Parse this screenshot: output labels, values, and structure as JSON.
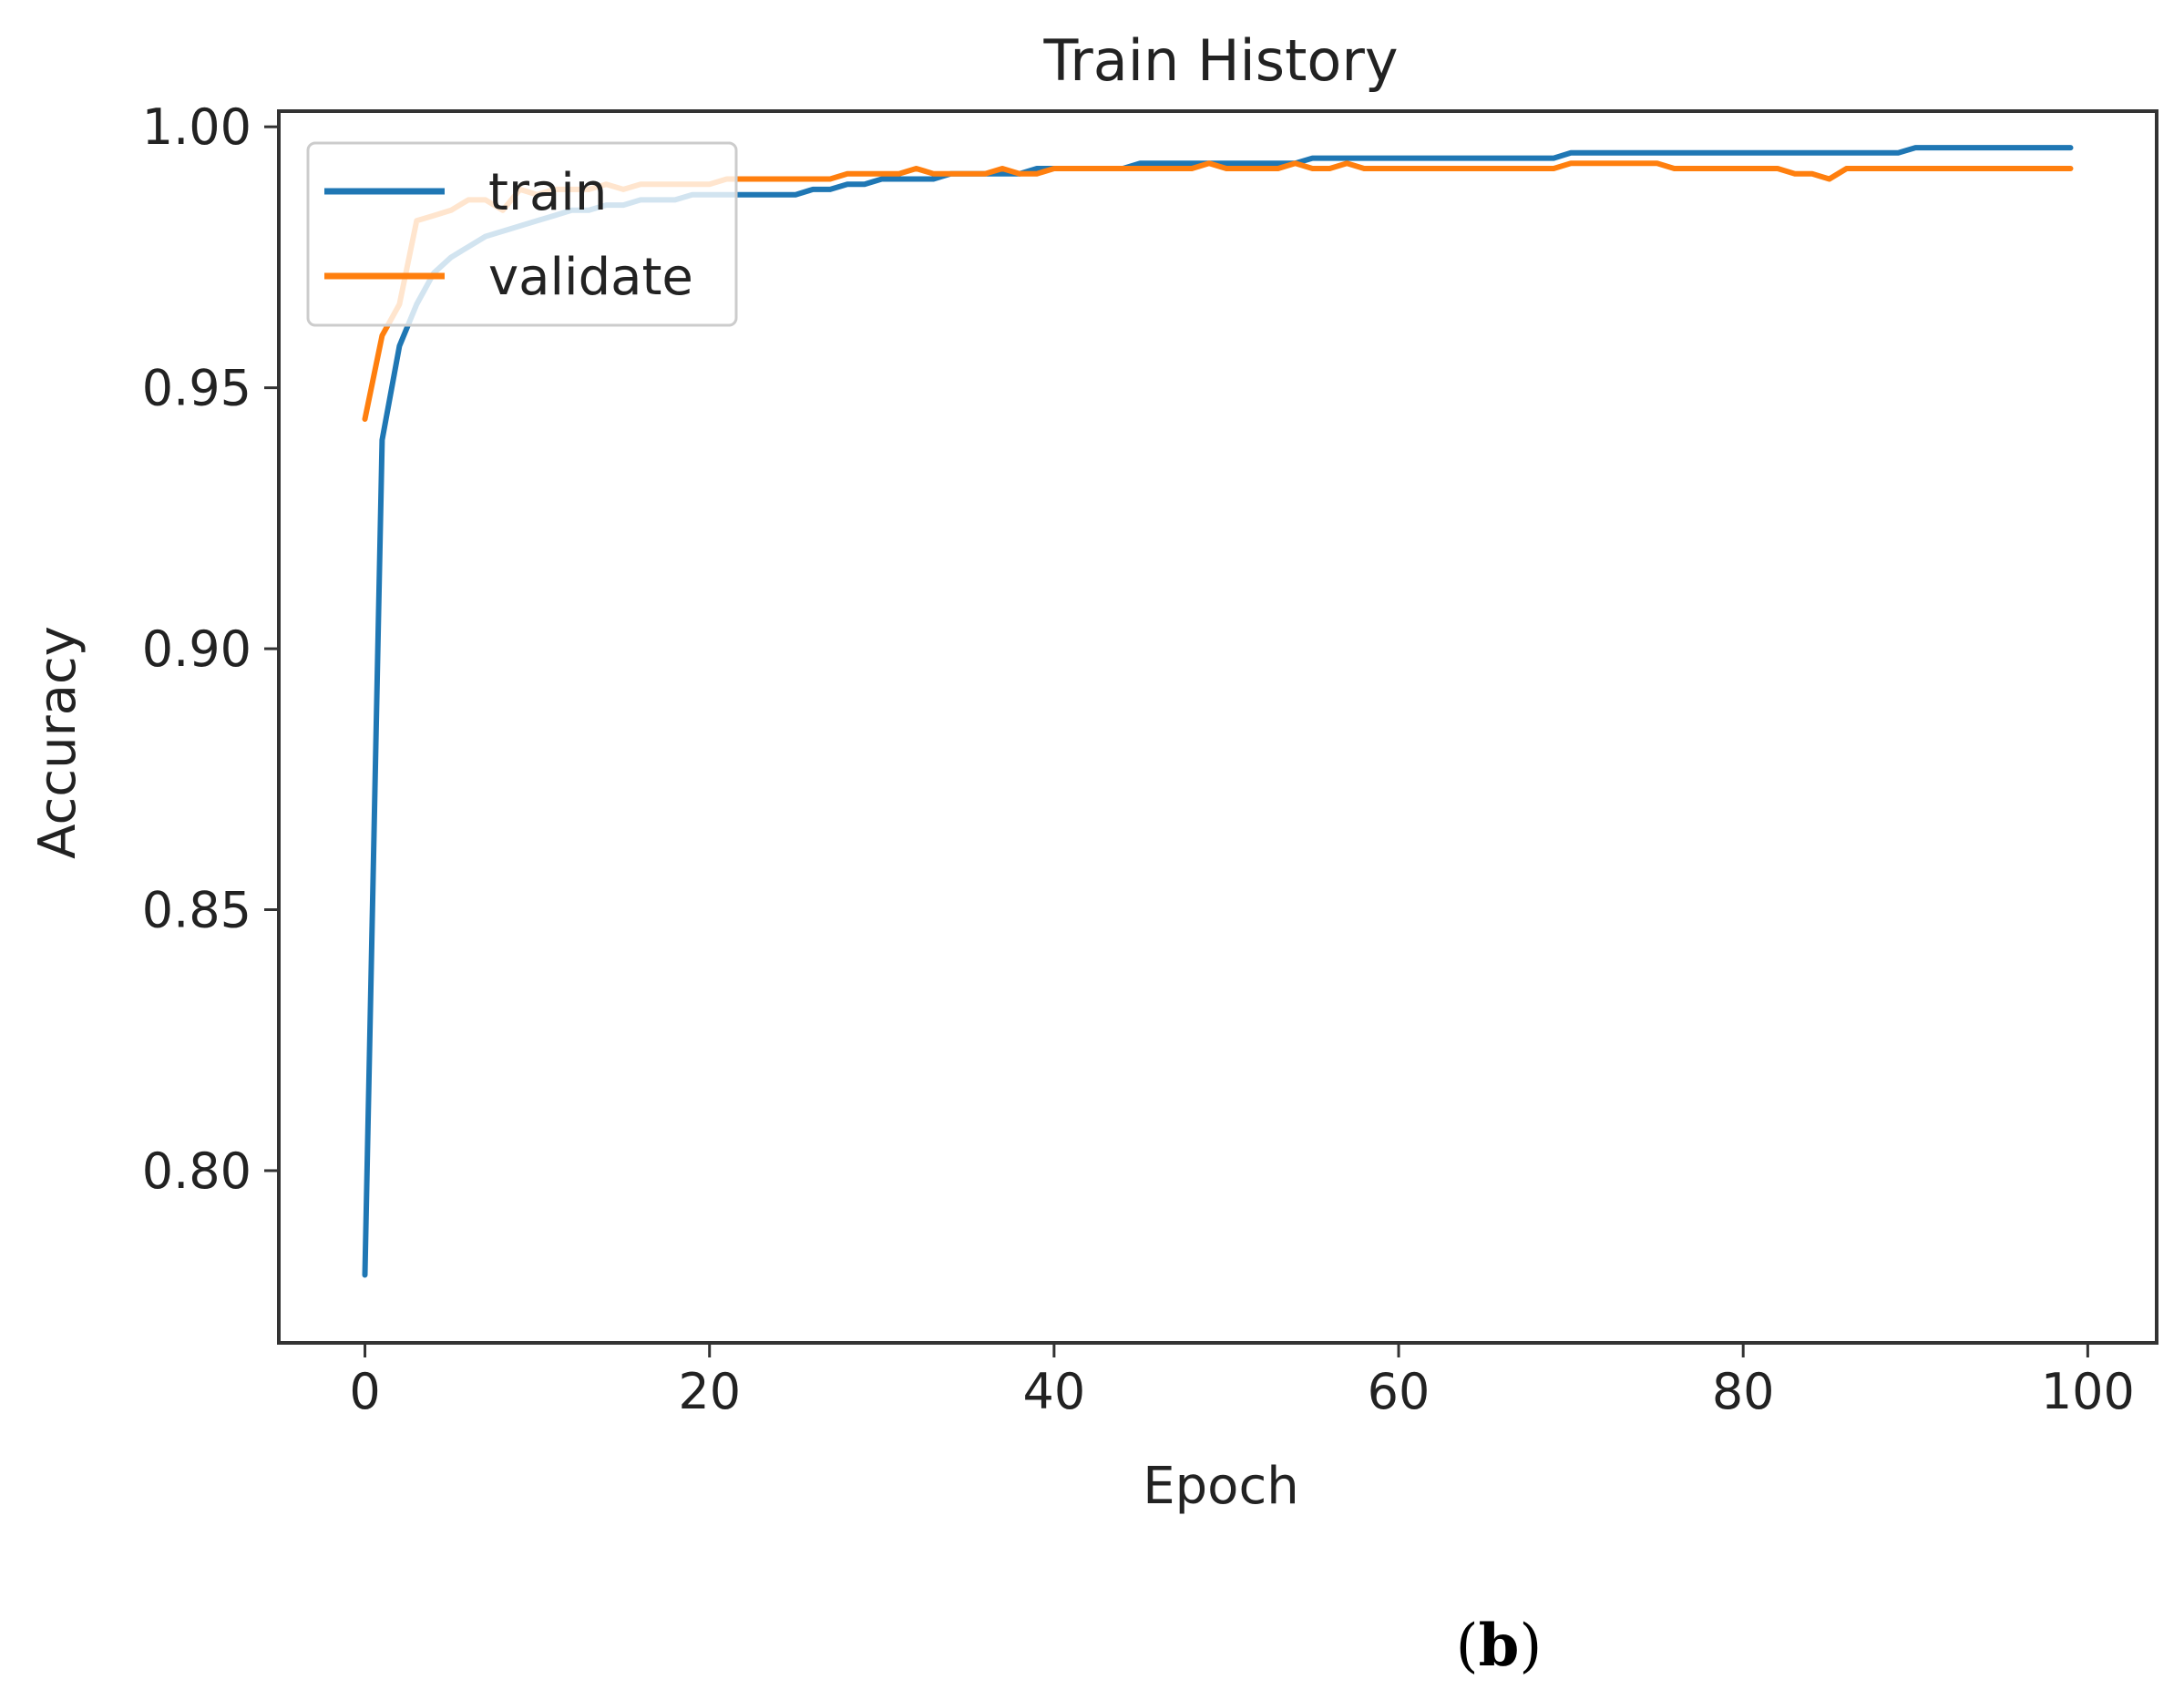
{
  "figure": {
    "caption_open": "(",
    "caption_letter": "b",
    "caption_close": ")"
  },
  "chart_data": {
    "type": "line",
    "title": "Train History",
    "xlabel": "Epoch",
    "ylabel": "Accuracy",
    "xlim": [
      -5,
      104
    ],
    "ylim": [
      0.767,
      1.003
    ],
    "xticks": [
      0,
      20,
      40,
      60,
      80,
      100
    ],
    "xtick_labels": [
      "0",
      "20",
      "40",
      "60",
      "80",
      "100"
    ],
    "yticks": [
      0.8,
      0.85,
      0.9,
      0.95,
      1.0
    ],
    "ytick_labels": [
      "0.80",
      "0.85",
      "0.90",
      "0.95",
      "1.00"
    ],
    "grid": false,
    "legend": "upper left",
    "x": [
      0,
      1,
      2,
      3,
      4,
      5,
      6,
      7,
      8,
      9,
      10,
      11,
      12,
      13,
      14,
      15,
      16,
      17,
      18,
      19,
      20,
      21,
      22,
      23,
      24,
      25,
      26,
      27,
      28,
      29,
      30,
      31,
      32,
      33,
      34,
      35,
      36,
      37,
      38,
      39,
      40,
      41,
      42,
      43,
      44,
      45,
      46,
      47,
      48,
      49,
      50,
      51,
      52,
      53,
      54,
      55,
      56,
      57,
      58,
      59,
      60,
      61,
      62,
      63,
      64,
      65,
      66,
      67,
      68,
      69,
      70,
      71,
      72,
      73,
      74,
      75,
      76,
      77,
      78,
      79,
      80,
      81,
      82,
      83,
      84,
      85,
      86,
      87,
      88,
      89,
      90,
      91,
      92,
      93,
      94,
      95,
      96,
      97,
      98,
      99
    ],
    "series": [
      {
        "name": "train",
        "color": "#1f77b4",
        "values": [
          0.78,
          0.94,
          0.958,
          0.966,
          0.972,
          0.975,
          0.977,
          0.979,
          0.98,
          0.981,
          0.982,
          0.983,
          0.984,
          0.984,
          0.985,
          0.985,
          0.986,
          0.986,
          0.986,
          0.987,
          0.987,
          0.987,
          0.987,
          0.987,
          0.987,
          0.987,
          0.988,
          0.988,
          0.989,
          0.989,
          0.99,
          0.99,
          0.99,
          0.99,
          0.991,
          0.991,
          0.991,
          0.991,
          0.991,
          0.992,
          0.992,
          0.992,
          0.992,
          0.992,
          0.992,
          0.993,
          0.993,
          0.993,
          0.993,
          0.993,
          0.993,
          0.993,
          0.993,
          0.993,
          0.993,
          0.994,
          0.994,
          0.994,
          0.994,
          0.994,
          0.994,
          0.994,
          0.994,
          0.994,
          0.994,
          0.994,
          0.994,
          0.994,
          0.994,
          0.994,
          0.995,
          0.995,
          0.995,
          0.995,
          0.995,
          0.995,
          0.995,
          0.995,
          0.995,
          0.995,
          0.995,
          0.995,
          0.995,
          0.995,
          0.995,
          0.995,
          0.995,
          0.995,
          0.995,
          0.995,
          0.996,
          0.996,
          0.996,
          0.996,
          0.996,
          0.996,
          0.996,
          0.996,
          0.996,
          0.996
        ]
      },
      {
        "name": "validate",
        "color": "#ff7f0e",
        "values": [
          0.944,
          0.96,
          0.966,
          0.982,
          0.983,
          0.984,
          0.986,
          0.986,
          0.984,
          0.988,
          0.987,
          0.988,
          0.988,
          0.988,
          0.989,
          0.988,
          0.989,
          0.989,
          0.989,
          0.989,
          0.989,
          0.99,
          0.99,
          0.99,
          0.99,
          0.99,
          0.99,
          0.99,
          0.991,
          0.991,
          0.991,
          0.991,
          0.992,
          0.991,
          0.991,
          0.991,
          0.991,
          0.992,
          0.991,
          0.991,
          0.992,
          0.992,
          0.992,
          0.992,
          0.992,
          0.992,
          0.992,
          0.992,
          0.992,
          0.993,
          0.992,
          0.992,
          0.992,
          0.992,
          0.993,
          0.992,
          0.992,
          0.993,
          0.992,
          0.992,
          0.992,
          0.992,
          0.992,
          0.992,
          0.992,
          0.992,
          0.992,
          0.992,
          0.992,
          0.992,
          0.993,
          0.993,
          0.993,
          0.993,
          0.993,
          0.993,
          0.992,
          0.992,
          0.992,
          0.992,
          0.992,
          0.992,
          0.992,
          0.991,
          0.991,
          0.99,
          0.992,
          0.992,
          0.992,
          0.992,
          0.992,
          0.992,
          0.992,
          0.992,
          0.992,
          0.992,
          0.992,
          0.992,
          0.992,
          0.992
        ]
      }
    ]
  }
}
